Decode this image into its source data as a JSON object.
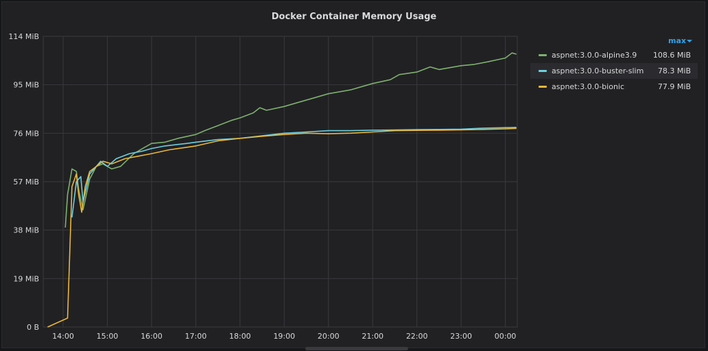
{
  "panel": {
    "title": "Docker Container Memory Usage"
  },
  "legend": {
    "header_label": "max",
    "header_icon": "caret-down-icon",
    "items": [
      {
        "name": "aspnet:3.0.0-alpine3.9",
        "value": "108.6 MiB",
        "color": "#7eb26d"
      },
      {
        "name": "aspnet:3.0.0-buster-slim",
        "value": "78.3 MiB",
        "color": "#6ed0e0"
      },
      {
        "name": "aspnet:3.0.0-bionic",
        "value": "77.9 MiB",
        "color": "#eab839"
      }
    ]
  },
  "chart_data": {
    "type": "line",
    "title": "Docker Container Memory Usage",
    "xlabel": "",
    "ylabel": "",
    "y_unit": "MiB",
    "ylim": [
      0,
      114
    ],
    "xlim": [
      13.55,
      24.27
    ],
    "y_ticks": [
      0,
      19,
      38,
      57,
      76,
      95,
      114
    ],
    "y_tick_labels": [
      "0 B",
      "19 MiB",
      "38 MiB",
      "57 MiB",
      "76 MiB",
      "95 MiB",
      "114 MiB"
    ],
    "x_ticks": [
      14,
      15,
      16,
      17,
      18,
      19,
      20,
      21,
      22,
      23,
      24
    ],
    "x_tick_labels": [
      "14:00",
      "15:00",
      "16:00",
      "17:00",
      "18:00",
      "19:00",
      "20:00",
      "21:00",
      "22:00",
      "23:00",
      "00:00"
    ],
    "grid": true,
    "legend_position": "right",
    "series": [
      {
        "name": "aspnet:3.0.0-alpine3.9",
        "color": "#7eb26d",
        "x": [
          14.05,
          14.1,
          14.2,
          14.3,
          14.35,
          14.45,
          14.6,
          14.75,
          14.9,
          15.1,
          15.3,
          15.6,
          15.8,
          16.0,
          16.3,
          16.6,
          17.0,
          17.2,
          17.5,
          17.8,
          18.0,
          18.3,
          18.45,
          18.6,
          19.0,
          19.3,
          19.7,
          20.0,
          20.5,
          21.0,
          21.4,
          21.6,
          22.0,
          22.3,
          22.5,
          23.0,
          23.3,
          23.6,
          24.0,
          24.15,
          24.25
        ],
        "values": [
          39,
          52,
          62,
          61,
          54,
          46,
          58,
          63,
          64,
          62,
          63,
          68,
          70,
          72,
          72.5,
          74,
          75.5,
          77,
          79,
          81,
          82,
          84,
          86,
          85,
          86.5,
          88,
          90,
          91.5,
          93,
          95.5,
          97,
          99,
          100,
          102,
          101,
          102.5,
          103,
          104,
          105.5,
          107.5,
          107
        ]
      },
      {
        "name": "aspnet:3.0.0-buster-slim",
        "color": "#6ed0e0",
        "x": [
          14.2,
          14.3,
          14.4,
          14.45,
          14.6,
          14.75,
          14.85,
          15.0,
          15.2,
          15.5,
          15.8,
          16.0,
          16.3,
          16.8,
          17.0,
          17.5,
          18.0,
          18.5,
          19.0,
          19.5,
          20.0,
          20.5,
          21.0,
          21.5,
          22.0,
          22.5,
          23.0,
          23.5,
          24.0,
          24.25
        ],
        "values": [
          43,
          57,
          59,
          49,
          60,
          63,
          65,
          63,
          66,
          68,
          69,
          70,
          71,
          72,
          72.5,
          73.5,
          74,
          75,
          76,
          76.5,
          77,
          77,
          77.2,
          77.3,
          77.4,
          77.5,
          77.6,
          78,
          78.2,
          78.3
        ]
      },
      {
        "name": "aspnet:3.0.0-bionic",
        "color": "#eab839",
        "x": [
          13.65,
          14.1,
          14.2,
          14.3,
          14.35,
          14.42,
          14.5,
          14.6,
          14.75,
          14.9,
          15.1,
          15.4,
          15.7,
          16.0,
          16.4,
          16.8,
          17.0,
          17.5,
          18.0,
          18.5,
          19.0,
          19.5,
          20.0,
          20.5,
          21.0,
          21.5,
          22.0,
          22.5,
          23.0,
          23.5,
          24.0,
          24.25
        ],
        "values": [
          0,
          3.5,
          55,
          60,
          52,
          45,
          55,
          61,
          63,
          65,
          64,
          66,
          67,
          68,
          69.5,
          70.5,
          71,
          73,
          74,
          74.8,
          75.5,
          76,
          75.8,
          76,
          76.5,
          77,
          77.1,
          77.2,
          77.3,
          77.5,
          77.7,
          77.9
        ]
      }
    ]
  }
}
